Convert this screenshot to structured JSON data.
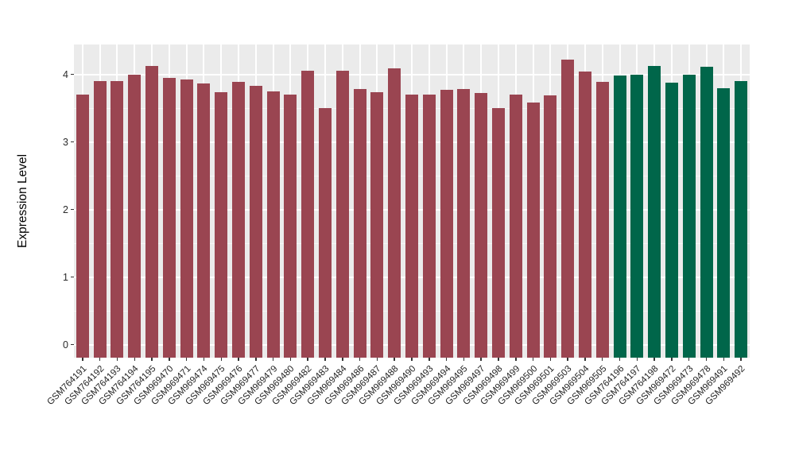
{
  "chart_data": {
    "type": "bar",
    "title": "",
    "xlabel": "",
    "ylabel": "Expression Level",
    "ylim": [
      0,
      4.43
    ],
    "yticks": [
      "0",
      "1",
      "2",
      "3",
      "4"
    ],
    "ytick_values": [
      0,
      1,
      2,
      3,
      4
    ],
    "minor_tick_values": [
      0.5,
      1.5,
      2.5,
      3.5
    ],
    "grid": "white major and minor gridlines on gray panel",
    "legend_position": "none",
    "panel_background": "#EBEBEB",
    "categories": [
      "GSM764191",
      "GSM764192",
      "GSM764193",
      "GSM764194",
      "GSM764195",
      "GSM969470",
      "GSM969471",
      "GSM969474",
      "GSM969475",
      "GSM969476",
      "GSM969477",
      "GSM969479",
      "GSM969480",
      "GSM969482",
      "GSM969483",
      "GSM969484",
      "GSM969486",
      "GSM969487",
      "GSM969488",
      "GSM969490",
      "GSM969493",
      "GSM969494",
      "GSM969495",
      "GSM969497",
      "GSM969498",
      "GSM969499",
      "GSM969500",
      "GSM969501",
      "GSM969503",
      "GSM969504",
      "GSM969505",
      "GSM764196",
      "GSM764197",
      "GSM764198",
      "GSM969472",
      "GSM969473",
      "GSM969478",
      "GSM969491",
      "GSM969492"
    ],
    "values": [
      3.7,
      3.91,
      3.9,
      4.0,
      4.13,
      3.95,
      3.93,
      3.87,
      3.74,
      3.89,
      3.83,
      3.75,
      3.71,
      4.06,
      3.5,
      4.06,
      3.79,
      3.74,
      4.1,
      3.7,
      3.71,
      3.78,
      3.79,
      3.73,
      3.51,
      3.71,
      3.59,
      3.69,
      4.22,
      4.05,
      3.89,
      3.99,
      4.0,
      4.13,
      3.88,
      4.0,
      4.12,
      3.8,
      3.9
    ],
    "groups": [
      {
        "name": "maroon-group",
        "color": "#9A4551",
        "start": 0,
        "end": 30
      },
      {
        "name": "green-group",
        "color": "#00664A",
        "start": 31,
        "end": 38
      }
    ]
  }
}
